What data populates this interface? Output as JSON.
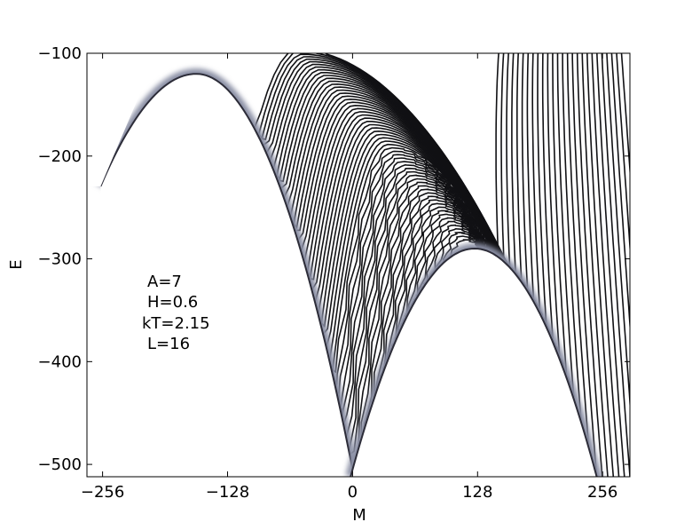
{
  "chart_data": {
    "type": "contour",
    "xlabel": "M",
    "ylabel": "E",
    "xlim": [
      -272,
      284
    ],
    "ylim": [
      -512,
      -100
    ],
    "xticks": [
      {
        "value": -256,
        "label": "−256"
      },
      {
        "value": -128,
        "label": "−128"
      },
      {
        "value": 0,
        "label": "0"
      },
      {
        "value": 128,
        "label": "128"
      },
      {
        "value": 256,
        "label": "256"
      }
    ],
    "yticks": [
      {
        "value": -100,
        "label": "−100"
      },
      {
        "value": -200,
        "label": "−200"
      },
      {
        "value": -300,
        "label": "−300"
      },
      {
        "value": -400,
        "label": "−400"
      },
      {
        "value": -500,
        "label": "−500"
      }
    ],
    "annotations": [
      "A=7",
      "H=0.6",
      "kT=2.15",
      "L=16"
    ],
    "boundaries": {
      "left_arch": {
        "left_foot": [
          -256,
          -225
        ],
        "peak": [
          -160,
          -120
        ],
        "right_foot": [
          0,
          -505
        ]
      },
      "right_arch": {
        "left_foot": [
          0,
          -505
        ],
        "peak": [
          125,
          -290
        ],
        "right_foot": [
          250,
          -512
        ]
      }
    },
    "contour_levels": 60,
    "color_scheme": {
      "outer": "#aec8c4",
      "mid": "#6e6c88",
      "inner": "#111114"
    }
  }
}
